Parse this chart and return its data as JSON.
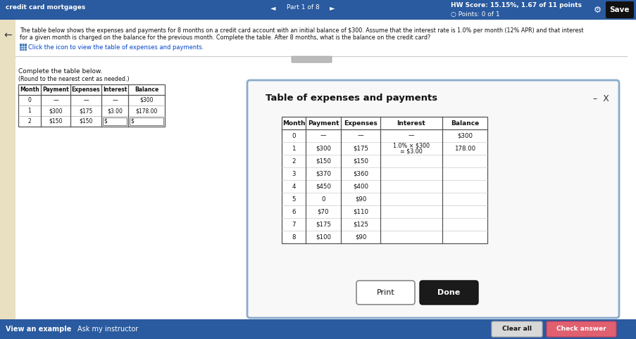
{
  "bg_color": "#3a6ea5",
  "top_bar_color": "#2a5a9f",
  "white_bg": "#f5f5f5",
  "top_bar": {
    "left_text": "credit card mortgages",
    "nav_left": "◄",
    "center_text": "Part 1 of 8",
    "nav_right": "►",
    "hw_score": "HW Score: 15.15%, 1.67 of 11 points",
    "points": "○ Points: 0 of 1",
    "save_btn": "Save"
  },
  "main_text_line1": "The table below shows the expenses and payments for 8 months on a credit card account with an initial balance of $300. Assume that the interest rate is 1.0% per month (12% APR) and that interest",
  "main_text_line2": "for a given month is charged on the balance for the previous month. Complete the table. After 8 months, what is the balance on the credit card?",
  "click_text": "Click the icon to view the table of expenses and payments.",
  "complete_label": "Complete the table below.",
  "round_label": "(Round to the nearest cent as needed.)",
  "small_table": {
    "headers": [
      "Month",
      "Payment",
      "Expenses",
      "Interest",
      "Balance"
    ],
    "rows": [
      [
        "0",
        "—",
        "—",
        "—",
        "$300"
      ],
      [
        "1",
        "$300",
        "$175",
        "$3.00",
        "$178.00"
      ],
      [
        "2",
        "$150",
        "$150",
        "$",
        "$"
      ]
    ]
  },
  "popup_bg": "#ffffff",
  "popup_border": "#7a9abf",
  "popup_title": "Table of expenses and payments",
  "popup_table": {
    "headers": [
      "Month",
      "Payment",
      "Expenses",
      "Interest",
      "Balance"
    ],
    "rows": [
      [
        "0",
        "—",
        "—",
        "—",
        "$300"
      ],
      [
        "1",
        "$300",
        "$175",
        "1.0% × $300\n= $3.00",
        "178.00"
      ],
      [
        "2",
        "$150",
        "$150",
        "",
        ""
      ],
      [
        "3",
        "$370",
        "$360",
        "",
        ""
      ],
      [
        "4",
        "$450",
        "$400",
        "",
        ""
      ],
      [
        "5",
        "0",
        "$90",
        "",
        ""
      ],
      [
        "6",
        "$70",
        "$110",
        "",
        ""
      ],
      [
        "7",
        "$175",
        "$125",
        "",
        ""
      ],
      [
        "8",
        "$100",
        "$90",
        "",
        ""
      ]
    ]
  },
  "print_btn": "Print",
  "done_btn": "Done",
  "bottom_left": "View an example",
  "bottom_ask": "Ask my instructor",
  "clear_btn": "Clear all",
  "check_btn": "Check answer",
  "bottom_bar_color": "#2a5a9f"
}
